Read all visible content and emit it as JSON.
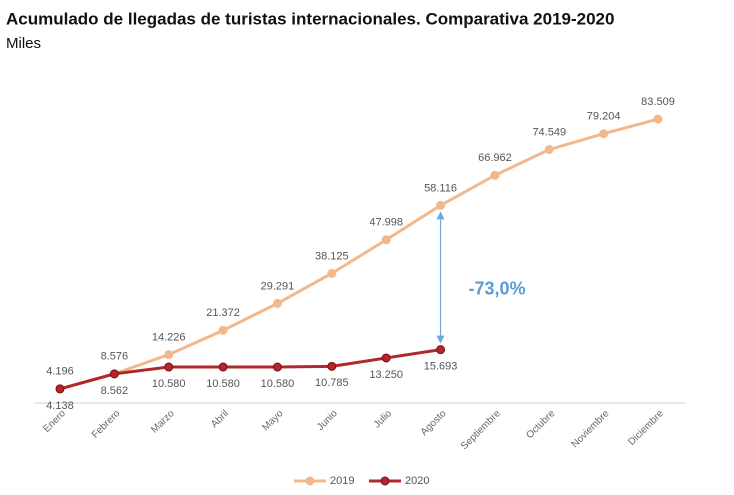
{
  "chart_data": {
    "type": "line",
    "title": "Acumulado de llegadas de turistas internacionales. Comparativa 2019-2020",
    "subtitle": "Miles",
    "categories": [
      "Enero",
      "Febrero",
      "Marzo",
      "Abril",
      "Mayo",
      "Junio",
      "Julio",
      "Agosto",
      "Septiembre",
      "Octubre",
      "Noviembre",
      "Diciembre"
    ],
    "series": [
      {
        "name": "2019",
        "color": "#f2b88b",
        "values": [
          4196,
          8576,
          14226,
          21372,
          29291,
          38125,
          47998,
          58116,
          66962,
          74549,
          79204,
          83509
        ],
        "value_labels": [
          "4.196",
          "8.576",
          "14.226",
          "21.372",
          "29.291",
          "38.125",
          "47.998",
          "58.116",
          "66.962",
          "74.549",
          "79.204",
          "83.509"
        ]
      },
      {
        "name": "2020",
        "color": "#b3262b",
        "values": [
          4138,
          8562,
          10580,
          10580,
          10580,
          10785,
          13250,
          15693,
          null,
          null,
          null,
          null
        ],
        "value_labels": [
          "4.138",
          "8.562",
          "10.580",
          "10.580",
          "10.580",
          "10.785",
          "13.250",
          "15.693",
          null,
          null,
          null,
          null
        ]
      }
    ],
    "annotation": "-73,0%",
    "ylim": [
      0,
      95000
    ],
    "legend": "bottom"
  }
}
